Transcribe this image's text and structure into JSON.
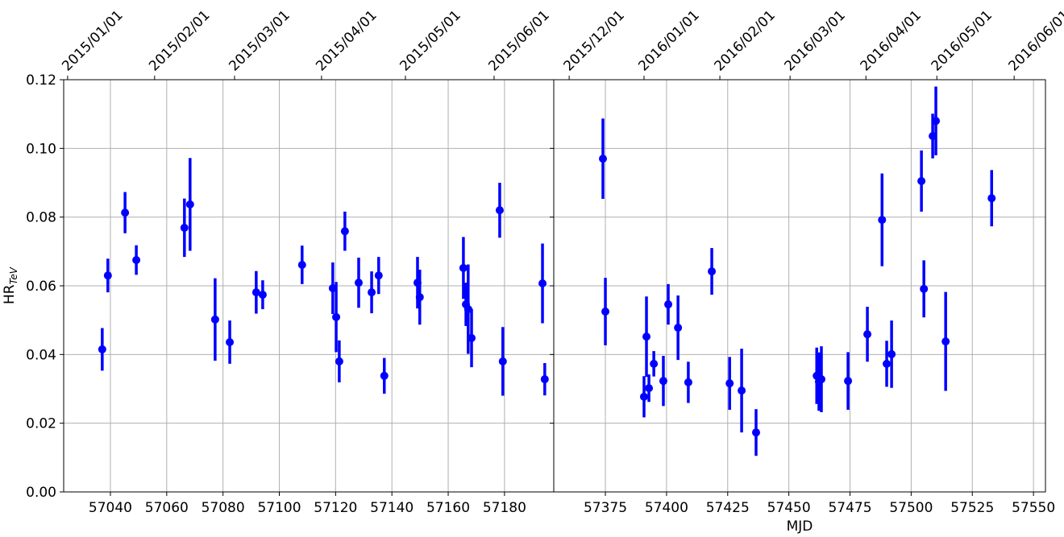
{
  "chart_data": [
    {
      "type": "scatter",
      "color": "#0000ff",
      "grid": true,
      "show_ytick_labels": true,
      "ylabel": "HR",
      "ylabel_sub": "TeV",
      "xlim": [
        57023.4,
        57197.5
      ],
      "ylim": [
        0,
        0.12
      ],
      "xticks": [
        57040,
        57060,
        57080,
        57100,
        57120,
        57140,
        57160,
        57180
      ],
      "yticks": [
        {
          "value": 0,
          "label": "0.00"
        },
        {
          "value": 0.02,
          "label": "0.02"
        },
        {
          "value": 0.04,
          "label": "0.04"
        },
        {
          "value": 0.06,
          "label": "0.06"
        },
        {
          "value": 0.08,
          "label": "0.08"
        },
        {
          "value": 0.1,
          "label": "0.10"
        },
        {
          "value": 0.12,
          "label": "0.12"
        }
      ],
      "x2ticks": [
        {
          "value": 57024.8,
          "label": "2015/01/01"
        },
        {
          "value": 57055.7,
          "label": "2015/02/01"
        },
        {
          "value": 57084.1,
          "label": "2015/03/01"
        },
        {
          "value": 57115,
          "label": "2015/04/01"
        },
        {
          "value": 57144.8,
          "label": "2015/05/01"
        },
        {
          "value": 57176.3,
          "label": "2015/06/01"
        }
      ],
      "x": [
        57037.1,
        57039.1,
        57045.2,
        57049.2,
        57066.3,
        57068.3,
        57077.2,
        57082.4,
        57091.8,
        57094.1,
        57108.1,
        57119.0,
        57120.2,
        57121.3,
        57123.3,
        57128.2,
        57132.8,
        57135.3,
        57137.3,
        57149.1,
        57149.9,
        57165.4,
        57166.3,
        57167.1,
        57168.3,
        57178.3,
        57179.4,
        57193.5,
        57194.3
      ],
      "values": [
        0.0415,
        0.063,
        0.0813,
        0.0675,
        0.0769,
        0.0837,
        0.0502,
        0.0436,
        0.0581,
        0.0574,
        0.0661,
        0.0593,
        0.0509,
        0.038,
        0.0759,
        0.0609,
        0.0581,
        0.063,
        0.0338,
        0.0609,
        0.0567,
        0.0652,
        0.0546,
        0.0532,
        0.0448,
        0.082,
        0.038,
        0.0607,
        0.0328
      ],
      "errors": [
        0.0062,
        0.0049,
        0.006,
        0.0043,
        0.0085,
        0.0135,
        0.012,
        0.0063,
        0.0062,
        0.0042,
        0.0056,
        0.0075,
        0.0102,
        0.0061,
        0.0057,
        0.0073,
        0.0061,
        0.0054,
        0.0052,
        0.0075,
        0.008,
        0.009,
        0.0063,
        0.013,
        0.0085,
        0.008,
        0.01,
        0.0116,
        0.0047
      ]
    },
    {
      "type": "scatter",
      "color": "#0000ff",
      "grid": true,
      "show_ytick_labels": false,
      "xlabel": "MJD",
      "xlim": [
        57353.9,
        57554.9
      ],
      "ylim": [
        0,
        0.12
      ],
      "xticks": [
        57375,
        57400,
        57425,
        57450,
        57475,
        57500,
        57525,
        57550
      ],
      "yticks": [
        0,
        0.02,
        0.04,
        0.06,
        0.08,
        0.1,
        0.12
      ],
      "x2ticks": [
        {
          "value": 57360.2,
          "label": "2015/12/01"
        },
        {
          "value": 57390.8,
          "label": "2016/01/01"
        },
        {
          "value": 57421.8,
          "label": "2016/02/01"
        },
        {
          "value": 57450.5,
          "label": "2016/03/01"
        },
        {
          "value": 57481.5,
          "label": "2016/04/01"
        },
        {
          "value": 57510.5,
          "label": "2016/05/01"
        },
        {
          "value": 57542.1,
          "label": "2016/06/01"
        }
      ],
      "x": [
        57374.0,
        57375.0,
        57390.8,
        57391.8,
        57392.8,
        57394.8,
        57398.7,
        57400.7,
        57404.7,
        57408.9,
        57418.5,
        57425.8,
        57430.7,
        57436.6,
        57461.4,
        57462.3,
        57463.3,
        57474.2,
        57482.1,
        57488.1,
        57490.0,
        57492.0,
        57504.2,
        57505.2,
        57508.8,
        57510.1,
        57514.1,
        57532.9
      ],
      "values": [
        0.097,
        0.0525,
        0.0277,
        0.0452,
        0.0302,
        0.0373,
        0.0323,
        0.0546,
        0.0478,
        0.0319,
        0.0642,
        0.0316,
        0.0295,
        0.0173,
        0.0338,
        0.0321,
        0.0328,
        0.0323,
        0.0459,
        0.0792,
        0.0373,
        0.0401,
        0.0905,
        0.0591,
        0.1036,
        0.108,
        0.0438,
        0.0855
      ],
      "errors": [
        0.0117,
        0.0098,
        0.006,
        0.0117,
        0.004,
        0.0037,
        0.0073,
        0.0059,
        0.0094,
        0.006,
        0.0068,
        0.0077,
        0.0122,
        0.0068,
        0.0082,
        0.0085,
        0.0096,
        0.0084,
        0.008,
        0.0135,
        0.0067,
        0.0098,
        0.0089,
        0.0083,
        0.0065,
        0.01,
        0.0144,
        0.0082
      ]
    }
  ]
}
